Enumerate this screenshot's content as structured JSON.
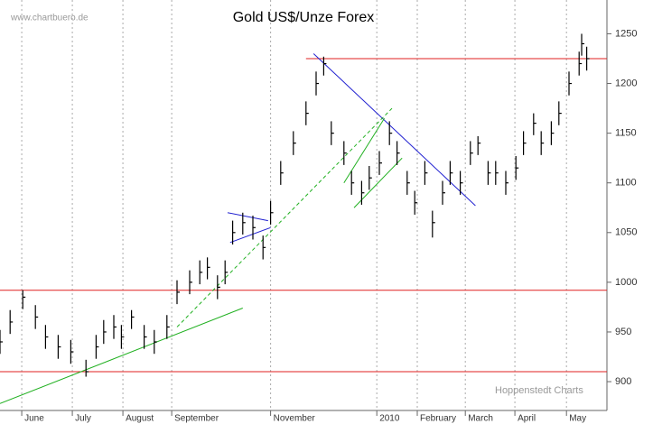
{
  "chart_data": {
    "type": "ohlc",
    "title": "Gold US$/Unze Forex",
    "source": "www.chartbuero.de",
    "credit": "Hoppenstedt Charts",
    "x": [
      0,
      4,
      9,
      14,
      18,
      23,
      28,
      34,
      38,
      41,
      45,
      48,
      52,
      57,
      61,
      66,
      70,
      75,
      79,
      82,
      86,
      89,
      92,
      96,
      100,
      104,
      107,
      111,
      116,
      121,
      125,
      128,
      131,
      136,
      139,
      143,
      146,
      150,
      154,
      157,
      161,
      164,
      168,
      171,
      175,
      178,
      182,
      186,
      189,
      193,
      196,
      200,
      204,
      207,
      211,
      214,
      218,
      221,
      225,
      229,
      230,
      232
    ],
    "close": [
      940,
      960,
      985,
      965,
      945,
      935,
      930,
      910,
      935,
      950,
      955,
      945,
      965,
      945,
      940,
      955,
      990,
      1000,
      1010,
      1015,
      995,
      1010,
      1050,
      1060,
      1055,
      1035,
      1070,
      1110,
      1140,
      1170,
      1200,
      1220,
      1150,
      1130,
      1100,
      1090,
      1105,
      1120,
      1150,
      1130,
      1100,
      1080,
      1110,
      1060,
      1090,
      1110,
      1100,
      1130,
      1140,
      1110,
      1110,
      1100,
      1115,
      1140,
      1160,
      1140,
      1150,
      1170,
      1200,
      1220,
      1240,
      1225
    ],
    "high": [
      952,
      972,
      992,
      977,
      957,
      947,
      942,
      922,
      947,
      962,
      967,
      957,
      972,
      957,
      952,
      967,
      1002,
      1012,
      1022,
      1025,
      1007,
      1022,
      1062,
      1070,
      1067,
      1047,
      1082,
      1122,
      1152,
      1182,
      1212,
      1227,
      1162,
      1142,
      1112,
      1102,
      1117,
      1132,
      1162,
      1142,
      1112,
      1092,
      1122,
      1072,
      1102,
      1122,
      1112,
      1142,
      1147,
      1122,
      1122,
      1112,
      1127,
      1152,
      1170,
      1152,
      1162,
      1182,
      1212,
      1232,
      1250,
      1237
    ],
    "low": [
      928,
      948,
      973,
      953,
      933,
      923,
      918,
      905,
      923,
      938,
      943,
      933,
      953,
      933,
      928,
      943,
      978,
      988,
      998,
      1003,
      983,
      998,
      1038,
      1048,
      1043,
      1023,
      1058,
      1098,
      1128,
      1158,
      1188,
      1208,
      1138,
      1118,
      1088,
      1078,
      1093,
      1108,
      1138,
      1118,
      1088,
      1068,
      1098,
      1045,
      1078,
      1098,
      1088,
      1118,
      1128,
      1098,
      1098,
      1088,
      1103,
      1128,
      1148,
      1128,
      1138,
      1158,
      1188,
      1208,
      1228,
      1213
    ],
    "color": "#000000",
    "xlim": [
      0,
      240
    ],
    "ylim": [
      871,
      1284
    ],
    "yticks": [
      900,
      950,
      1000,
      1050,
      1100,
      1150,
      1200,
      1250
    ],
    "xticks": [
      {
        "value": 8.6,
        "label": "June"
      },
      {
        "value": 28.6,
        "label": "July"
      },
      {
        "value": 48.6,
        "label": "August"
      },
      {
        "value": 67.9,
        "label": "September"
      },
      {
        "value": 107,
        "label": "November"
      },
      {
        "value": 149,
        "label": "2010"
      },
      {
        "value": 165,
        "label": "February"
      },
      {
        "value": 184,
        "label": "March"
      },
      {
        "value": 203.6,
        "label": "April"
      },
      {
        "value": 224,
        "label": "May"
      }
    ],
    "grid": true,
    "lines": [
      {
        "color": "#e02020",
        "x": [
          121,
          240
        ],
        "y": [
          1225,
          1225
        ]
      },
      {
        "color": "#e02020",
        "x": [
          0,
          240
        ],
        "y": [
          992,
          992
        ]
      },
      {
        "color": "#e02020",
        "x": [
          0,
          240
        ],
        "y": [
          910,
          910
        ]
      },
      {
        "color": "#2020d0",
        "x": [
          124,
          188
        ],
        "y": [
          1230,
          1077
        ]
      },
      {
        "color": "#2020d0",
        "x": [
          90,
          106
        ],
        "y": [
          1070,
          1062
        ]
      },
      {
        "color": "#2020d0",
        "x": [
          91,
          107
        ],
        "y": [
          1040,
          1055
        ]
      },
      {
        "color": "#20b020",
        "x": [
          0,
          96
        ],
        "y": [
          878,
          974
        ]
      },
      {
        "color": "#20b020",
        "x": [
          70,
          155
        ],
        "y": [
          955,
          1175
        ],
        "dashed": true
      },
      {
        "color": "#20b020",
        "x": [
          136,
          152
        ],
        "y": [
          1100,
          1165
        ]
      },
      {
        "color": "#20b020",
        "x": [
          140,
          159
        ],
        "y": [
          1075,
          1125
        ]
      }
    ]
  }
}
